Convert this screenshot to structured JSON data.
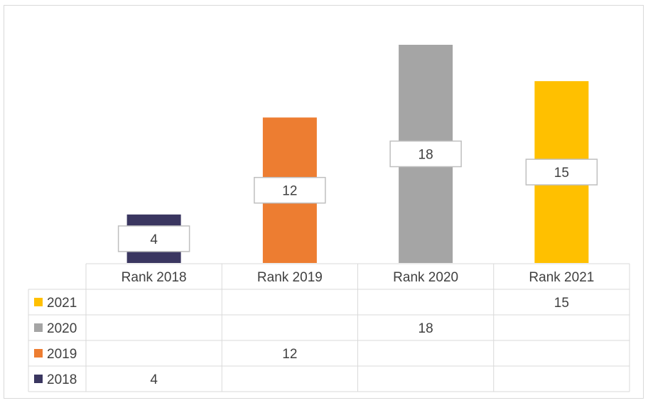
{
  "chart_data": {
    "type": "bar",
    "categories": [
      "Rank 2018",
      "Rank 2019",
      "Rank 2020",
      "Rank 2021"
    ],
    "series": [
      {
        "name": "2021",
        "color": "#FFC000",
        "values": [
          null,
          null,
          null,
          15
        ]
      },
      {
        "name": "2020",
        "color": "#A5A5A5",
        "values": [
          null,
          null,
          18,
          null
        ]
      },
      {
        "name": "2019",
        "color": "#ED7D31",
        "values": [
          null,
          12,
          null,
          null
        ]
      },
      {
        "name": "2018",
        "color": "#3A3660",
        "values": [
          4,
          null,
          null,
          null
        ]
      }
    ],
    "title": "",
    "xlabel": "",
    "ylabel": "",
    "ylim": [
      0,
      18
    ],
    "grid": false,
    "data_table": true,
    "data_labels": true
  }
}
